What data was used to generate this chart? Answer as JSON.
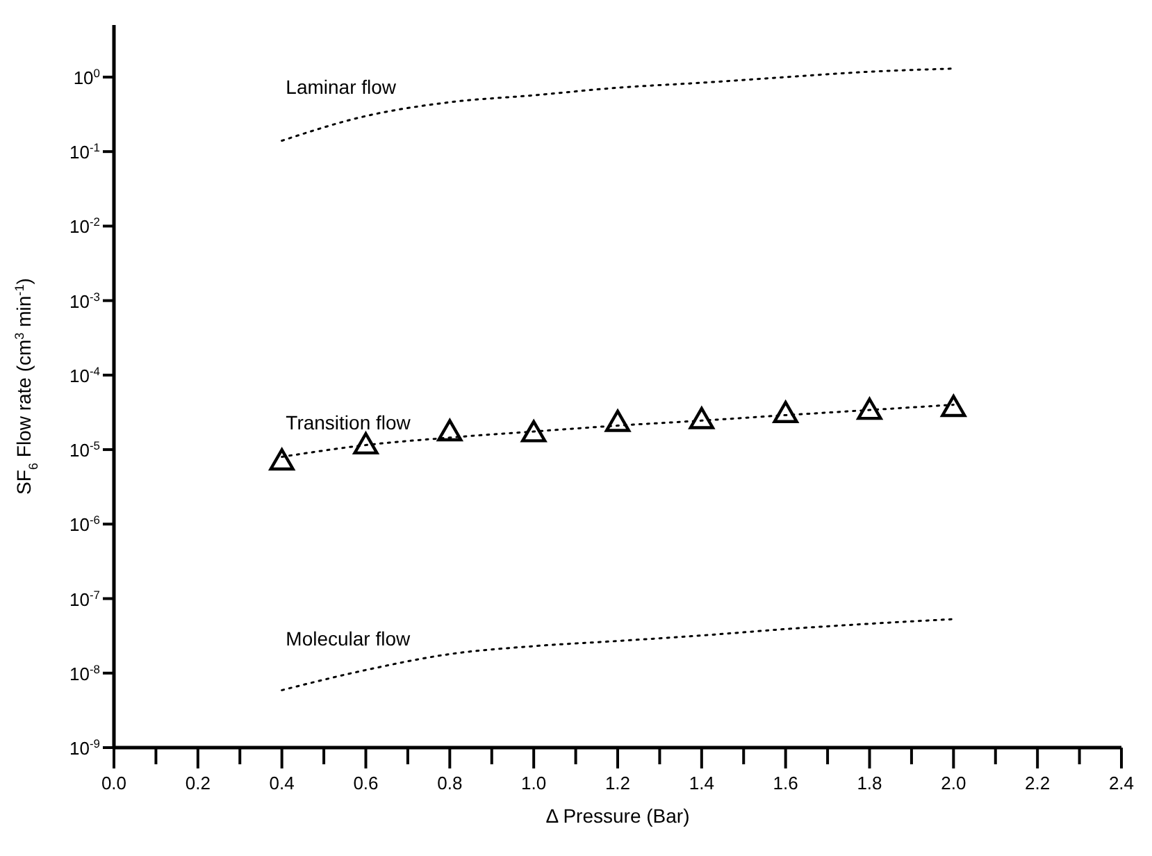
{
  "chart_data": {
    "type": "line",
    "xlabel": "Δ Pressure (Bar)",
    "ylabel": "SF$_{6}$ Flow rate (cm$^{3}$ min$^{-1}$)",
    "log": "y",
    "grid": false,
    "legend": false,
    "line_style": "dotted",
    "marker": "none",
    "x": [
      0.4,
      0.6,
      0.8,
      1.0,
      1.2,
      1.4,
      1.6,
      1.8,
      2.0
    ],
    "series": [
      {
        "name": "Laminar flow",
        "color": "#000000",
        "values": [
          0.14,
          0.3,
          0.46,
          0.57,
          0.72,
          0.84,
          1.0,
          1.18,
          1.3
        ]
      },
      {
        "name": "Transition flow",
        "color": "#000000",
        "values": [
          8e-06,
          1.15e-05,
          1.45e-05,
          1.75e-05,
          2.1e-05,
          2.45e-05,
          2.9e-05,
          3.4e-05,
          4e-05
        ]
      },
      {
        "type": "scatter",
        "marker": "triangle",
        "color": "#000000",
        "values": [
          6.7e-06,
          1.1e-05,
          1.65e-05,
          1.6e-05,
          2.2e-05,
          2.4e-05,
          2.9e-05,
          3.2e-05,
          3.5e-05
        ]
      },
      {
        "name": "Molecular flow",
        "color": "#000000",
        "values": [
          5.9e-09,
          1.1e-08,
          1.8e-08,
          2.3e-08,
          2.7e-08,
          3.2e-08,
          3.9e-08,
          4.6e-08,
          5.3e-08
        ]
      }
    ],
    "xlim": [
      0,
      2.4
    ],
    "xticks": [
      {
        "value": 0,
        "label": "0.0"
      },
      {
        "value": 0.1,
        "label": null
      },
      {
        "value": 0.2,
        "label": "0.2"
      },
      {
        "value": 0.3,
        "label": null
      },
      {
        "value": 0.4,
        "label": "0.4"
      },
      {
        "value": 0.5,
        "label": null
      },
      {
        "value": 0.6,
        "label": "0.6"
      },
      {
        "value": 0.7,
        "label": null
      },
      {
        "value": 0.8,
        "label": "0.8"
      },
      {
        "value": 0.9,
        "label": null
      },
      {
        "value": 1.0,
        "label": "1.0"
      },
      {
        "value": 1.1,
        "label": null
      },
      {
        "value": 1.2,
        "label": "1.2"
      },
      {
        "value": 1.3,
        "label": null
      },
      {
        "value": 1.4,
        "label": "1.4"
      },
      {
        "value": 1.5,
        "label": null
      },
      {
        "value": 1.6,
        "label": "1.6"
      },
      {
        "value": 1.7,
        "label": null
      },
      {
        "value": 1.8,
        "label": "1.8"
      },
      {
        "value": 1.9,
        "label": null
      },
      {
        "value": 2.0,
        "label": "2.0"
      },
      {
        "value": 2.1,
        "label": null
      },
      {
        "value": 2.2,
        "label": "2.2"
      },
      {
        "value": 2.3,
        "label": null
      },
      {
        "value": 2.4,
        "label": "2.4"
      }
    ],
    "ylim": [
      1e-09,
      5
    ],
    "yticks": [
      {
        "value": 1e-09,
        "label": "10$^{-9}$"
      },
      {
        "value": 1e-08,
        "label": "10$^{-8}$"
      },
      {
        "value": 1e-07,
        "label": "10$^{-7}$"
      },
      {
        "value": 1e-06,
        "label": "10$^{-6}$"
      },
      {
        "value": 1e-05,
        "label": "10$^{-5}$"
      },
      {
        "value": 0.0001,
        "label": "10$^{-4}$"
      },
      {
        "value": 0.001,
        "label": "10$^{-3}$"
      },
      {
        "value": 0.01,
        "label": "10$^{-2}$"
      },
      {
        "value": 0.1,
        "label": "10$^{-1}$"
      },
      {
        "value": 1,
        "label": "10$^{0}$"
      }
    ]
  }
}
